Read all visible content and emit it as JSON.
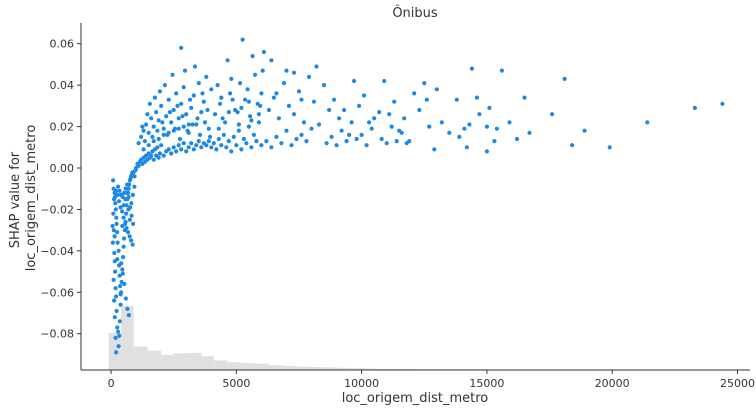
{
  "chart_data": {
    "type": "scatter",
    "title": "Ônibus",
    "xlabel": "loc_origem_dist_metro",
    "ylabel_lines": [
      "SHAP value for",
      "loc_origem_dist_metro"
    ],
    "xlim": [
      -1200,
      25500
    ],
    "ylim": [
      -0.0975,
      0.07
    ],
    "x_ticks": [
      0,
      5000,
      10000,
      15000,
      20000,
      25000
    ],
    "x_tick_labels": [
      "0",
      "5000",
      "10000",
      "15000",
      "20000",
      "25000"
    ],
    "y_ticks": [
      -0.08,
      -0.06,
      -0.04,
      -0.02,
      0.0,
      0.02,
      0.04,
      0.06
    ],
    "y_tick_labels": [
      "−0.08",
      "−0.06",
      "−0.04",
      "−0.02",
      "0.00",
      "0.02",
      "0.04",
      "0.06"
    ],
    "grid": false,
    "point_color": "#1e88e5",
    "histogram_color": "#e0e0e0",
    "histogram": {
      "bin_edges": [
        -100,
        400,
        900,
        1450,
        2000,
        2500,
        3050,
        3600,
        4100,
        4650,
        5200,
        5750,
        6300,
        6850,
        7350,
        7900,
        8450,
        9000,
        9500,
        10050,
        10600,
        11150,
        11700,
        12200,
        12750,
        13300,
        13850,
        14350,
        14900,
        15450,
        16000,
        16550,
        17050,
        17600,
        18150,
        18700,
        19200,
        19750,
        20300,
        20850,
        21400,
        21900,
        22450,
        23000,
        23550,
        24050,
        24600
      ],
      "relative_heights": [
        1.0,
        1.72,
        0.63,
        0.52,
        0.41,
        0.45,
        0.46,
        0.37,
        0.26,
        0.21,
        0.19,
        0.17,
        0.13,
        0.11,
        0.09,
        0.08,
        0.07,
        0.06,
        0.05,
        0.04,
        0.03,
        0.03,
        0.03,
        0.02,
        0.02,
        0.02,
        0.02,
        0.02,
        0.01,
        0.01,
        0.01,
        0.01,
        0.01,
        0.01,
        0.01,
        0.005,
        0.005,
        0.005,
        0.005,
        0.005,
        0.005,
        0.005,
        0.005,
        0.005,
        0.005,
        0.005
      ]
    },
    "points": [
      [
        80,
        -0.006
      ],
      [
        100,
        -0.01
      ],
      [
        120,
        -0.015
      ],
      [
        90,
        -0.022
      ],
      [
        60,
        -0.028
      ],
      [
        110,
        -0.03
      ],
      [
        140,
        -0.033
      ],
      [
        70,
        -0.036
      ],
      [
        130,
        -0.041
      ],
      [
        150,
        -0.045
      ],
      [
        160,
        -0.05
      ],
      [
        100,
        -0.054
      ],
      [
        180,
        -0.058
      ],
      [
        200,
        -0.062
      ],
      [
        120,
        -0.064
      ],
      [
        220,
        -0.069
      ],
      [
        150,
        -0.072
      ],
      [
        250,
        -0.077
      ],
      [
        180,
        -0.082
      ],
      [
        300,
        -0.086
      ],
      [
        200,
        -0.089
      ],
      [
        280,
        -0.079
      ],
      [
        330,
        -0.081
      ],
      [
        350,
        -0.074
      ],
      [
        380,
        -0.066
      ],
      [
        400,
        -0.06
      ],
      [
        420,
        -0.055
      ],
      [
        450,
        -0.049
      ],
      [
        480,
        -0.043
      ],
      [
        500,
        -0.038
      ],
      [
        520,
        -0.034
      ],
      [
        550,
        -0.03
      ],
      [
        580,
        -0.026
      ],
      [
        600,
        -0.022
      ],
      [
        620,
        -0.018
      ],
      [
        650,
        -0.015
      ],
      [
        680,
        -0.012
      ],
      [
        700,
        -0.01
      ],
      [
        720,
        -0.008
      ],
      [
        750,
        -0.006
      ],
      [
        780,
        -0.005
      ],
      [
        800,
        -0.004
      ],
      [
        830,
        -0.003
      ],
      [
        860,
        -0.002
      ],
      [
        900,
        -0.002
      ],
      [
        300,
        -0.04
      ],
      [
        320,
        -0.047
      ],
      [
        340,
        -0.052
      ],
      [
        360,
        -0.057
      ],
      [
        380,
        -0.061
      ],
      [
        260,
        -0.036
      ],
      [
        240,
        -0.031
      ],
      [
        220,
        -0.027
      ],
      [
        210,
        -0.024
      ],
      [
        190,
        -0.02
      ],
      [
        170,
        -0.017
      ],
      [
        160,
        -0.014
      ],
      [
        140,
        -0.012
      ],
      [
        200,
        -0.011
      ],
      [
        260,
        -0.013
      ],
      [
        320,
        -0.016
      ],
      [
        380,
        -0.019
      ],
      [
        440,
        -0.021
      ],
      [
        500,
        -0.024
      ],
      [
        560,
        -0.027
      ],
      [
        620,
        -0.029
      ],
      [
        680,
        -0.031
      ],
      [
        740,
        -0.033
      ],
      [
        800,
        -0.035
      ],
      [
        860,
        -0.037
      ],
      [
        250,
        -0.044
      ],
      [
        410,
        -0.046
      ],
      [
        470,
        -0.051
      ],
      [
        530,
        -0.056
      ],
      [
        590,
        -0.063
      ],
      [
        650,
        -0.068
      ],
      [
        710,
        -0.071
      ],
      [
        450,
        -0.028
      ],
      [
        510,
        -0.018
      ],
      [
        570,
        -0.015
      ],
      [
        630,
        -0.012
      ],
      [
        690,
        -0.02
      ],
      [
        750,
        -0.025
      ],
      [
        810,
        -0.017
      ],
      [
        870,
        -0.013
      ],
      [
        930,
        -0.009
      ],
      [
        280,
        -0.009
      ],
      [
        340,
        -0.011
      ],
      [
        400,
        -0.013
      ],
      [
        460,
        -0.014
      ],
      [
        520,
        -0.012
      ],
      [
        580,
        -0.01
      ],
      [
        640,
        -0.008
      ],
      [
        700,
        -0.014
      ],
      [
        760,
        -0.019
      ],
      [
        820,
        -0.023
      ],
      [
        880,
        -0.027
      ],
      [
        940,
        -0.004
      ],
      [
        980,
        -0.001
      ],
      [
        1000,
        0.0
      ],
      [
        1050,
        0.002
      ],
      [
        1100,
        0.001
      ],
      [
        1150,
        0.003
      ],
      [
        1200,
        0.004
      ],
      [
        1250,
        0.002
      ],
      [
        1300,
        0.005
      ],
      [
        1350,
        0.003
      ],
      [
        1400,
        0.006
      ],
      [
        1450,
        0.004
      ],
      [
        1500,
        0.007
      ],
      [
        1550,
        0.005
      ],
      [
        1600,
        0.006
      ],
      [
        1650,
        0.008
      ],
      [
        1700,
        0.004
      ],
      [
        1750,
        0.009
      ],
      [
        1800,
        0.006
      ],
      [
        1850,
        0.01
      ],
      [
        1900,
        0.005
      ],
      [
        1950,
        0.007
      ],
      [
        2000,
        0.011
      ],
      [
        2100,
        0.006
      ],
      [
        2200,
        0.008
      ],
      [
        2300,
        0.009
      ],
      [
        2400,
        0.007
      ],
      [
        2500,
        0.01
      ],
      [
        2600,
        0.008
      ],
      [
        2700,
        0.011
      ],
      [
        2800,
        0.009
      ],
      [
        2900,
        0.012
      ],
      [
        3000,
        0.008
      ],
      [
        3100,
        0.01
      ],
      [
        3200,
        0.012
      ],
      [
        3300,
        0.009
      ],
      [
        3400,
        0.011
      ],
      [
        3500,
        0.013
      ],
      [
        3600,
        0.01
      ],
      [
        3700,
        0.012
      ],
      [
        3800,
        0.011
      ],
      [
        3900,
        0.013
      ],
      [
        4000,
        0.01
      ],
      [
        1100,
        0.012
      ],
      [
        1200,
        0.015
      ],
      [
        1300,
        0.018
      ],
      [
        1400,
        0.021
      ],
      [
        1500,
        0.017
      ],
      [
        1600,
        0.024
      ],
      [
        1700,
        0.02
      ],
      [
        1800,
        0.027
      ],
      [
        1900,
        0.023
      ],
      [
        2000,
        0.03
      ],
      [
        2100,
        0.019
      ],
      [
        2200,
        0.025
      ],
      [
        2300,
        0.033
      ],
      [
        2400,
        0.022
      ],
      [
        2500,
        0.028
      ],
      [
        2600,
        0.036
      ],
      [
        2700,
        0.024
      ],
      [
        2800,
        0.031
      ],
      [
        2900,
        0.039
      ],
      [
        3000,
        0.026
      ],
      [
        3100,
        0.017
      ],
      [
        3200,
        0.029
      ],
      [
        3300,
        0.035
      ],
      [
        3400,
        0.021
      ],
      [
        3500,
        0.041
      ],
      [
        3600,
        0.027
      ],
      [
        3700,
        0.032
      ],
      [
        3800,
        0.044
      ],
      [
        3900,
        0.019
      ],
      [
        4000,
        0.038
      ],
      [
        1250,
        0.02
      ],
      [
        1350,
        0.013
      ],
      [
        1450,
        0.026
      ],
      [
        1550,
        0.031
      ],
      [
        1650,
        0.015
      ],
      [
        1750,
        0.034
      ],
      [
        1850,
        0.018
      ],
      [
        1950,
        0.037
      ],
      [
        2050,
        0.022
      ],
      [
        2150,
        0.04
      ],
      [
        2250,
        0.016
      ],
      [
        2350,
        0.027
      ],
      [
        2450,
        0.045
      ],
      [
        2550,
        0.019
      ],
      [
        2650,
        0.03
      ],
      [
        2750,
        0.014
      ],
      [
        2850,
        0.025
      ],
      [
        2950,
        0.047
      ],
      [
        3050,
        0.018
      ],
      [
        3150,
        0.033
      ],
      [
        3250,
        0.021
      ],
      [
        3350,
        0.049
      ],
      [
        3450,
        0.024
      ],
      [
        3550,
        0.016
      ],
      [
        3650,
        0.036
      ],
      [
        3750,
        0.022
      ],
      [
        3850,
        0.028
      ],
      [
        3950,
        0.015
      ],
      [
        2800,
        0.058
      ],
      [
        1300,
        0.009
      ],
      [
        1500,
        0.011
      ],
      [
        1700,
        0.013
      ],
      [
        1900,
        0.014
      ],
      [
        2100,
        0.016
      ],
      [
        2300,
        0.017
      ],
      [
        2500,
        0.018
      ],
      [
        2700,
        0.019
      ],
      [
        2900,
        0.02
      ],
      [
        3100,
        0.021
      ],
      [
        4100,
        0.012
      ],
      [
        4200,
        0.009
      ],
      [
        4300,
        0.014
      ],
      [
        4400,
        0.011
      ],
      [
        4500,
        0.016
      ],
      [
        4600,
        0.01
      ],
      [
        4700,
        0.013
      ],
      [
        4800,
        0.008
      ],
      [
        4900,
        0.015
      ],
      [
        5000,
        0.011
      ],
      [
        5100,
        0.018
      ],
      [
        5200,
        0.009
      ],
      [
        5300,
        0.014
      ],
      [
        5400,
        0.012
      ],
      [
        5500,
        0.02
      ],
      [
        5600,
        0.01
      ],
      [
        5700,
        0.016
      ],
      [
        5800,
        0.013
      ],
      [
        5900,
        0.022
      ],
      [
        6000,
        0.011
      ],
      [
        4150,
        0.026
      ],
      [
        4350,
        0.031
      ],
      [
        4550,
        0.022
      ],
      [
        4750,
        0.036
      ],
      [
        4950,
        0.028
      ],
      [
        5150,
        0.041
      ],
      [
        5350,
        0.033
      ],
      [
        5550,
        0.025
      ],
      [
        5750,
        0.045
      ],
      [
        5950,
        0.03
      ],
      [
        4250,
        0.04
      ],
      [
        4450,
        0.024
      ],
      [
        4650,
        0.052
      ],
      [
        4850,
        0.033
      ],
      [
        5050,
        0.027
      ],
      [
        5250,
        0.062
      ],
      [
        5450,
        0.038
      ],
      [
        5650,
        0.054
      ],
      [
        5850,
        0.031
      ],
      [
        6050,
        0.047
      ],
      [
        4300,
        0.019
      ],
      [
        4700,
        0.027
      ],
      [
        5100,
        0.021
      ],
      [
        5500,
        0.032
      ],
      [
        5900,
        0.026
      ],
      [
        4400,
        0.034
      ],
      [
        4800,
        0.043
      ],
      [
        5200,
        0.029
      ],
      [
        5600,
        0.023
      ],
      [
        6000,
        0.036
      ],
      [
        6200,
        0.013
      ],
      [
        6400,
        0.01
      ],
      [
        6600,
        0.015
      ],
      [
        6800,
        0.012
      ],
      [
        7000,
        0.018
      ],
      [
        7200,
        0.011
      ],
      [
        7400,
        0.014
      ],
      [
        7600,
        0.016
      ],
      [
        7800,
        0.013
      ],
      [
        8000,
        0.019
      ],
      [
        6300,
        0.028
      ],
      [
        6500,
        0.034
      ],
      [
        6700,
        0.024
      ],
      [
        6900,
        0.041
      ],
      [
        7100,
        0.03
      ],
      [
        7300,
        0.026
      ],
      [
        7500,
        0.037
      ],
      [
        7700,
        0.022
      ],
      [
        7900,
        0.044
      ],
      [
        8100,
        0.032
      ],
      [
        6400,
        0.052
      ],
      [
        7000,
        0.047
      ],
      [
        7600,
        0.033
      ],
      [
        8200,
        0.049
      ],
      [
        8500,
        0.04
      ],
      [
        6100,
        0.056
      ],
      [
        6600,
        0.036
      ],
      [
        7300,
        0.046
      ],
      [
        8300,
        0.021
      ],
      [
        8700,
        0.028
      ],
      [
        8600,
        0.012
      ],
      [
        8800,
        0.015
      ],
      [
        9000,
        0.011
      ],
      [
        9200,
        0.018
      ],
      [
        9400,
        0.013
      ],
      [
        9600,
        0.022
      ],
      [
        9800,
        0.014
      ],
      [
        10000,
        0.016
      ],
      [
        10200,
        0.011
      ],
      [
        10400,
        0.019
      ],
      [
        8900,
        0.033
      ],
      [
        9300,
        0.028
      ],
      [
        9700,
        0.042
      ],
      [
        10100,
        0.035
      ],
      [
        10500,
        0.024
      ],
      [
        9100,
        0.024
      ],
      [
        9500,
        0.016
      ],
      [
        9900,
        0.03
      ],
      [
        10300,
        0.022
      ],
      [
        10700,
        0.027
      ],
      [
        10800,
        0.014
      ],
      [
        11000,
        0.012
      ],
      [
        11200,
        0.02
      ],
      [
        11400,
        0.013
      ],
      [
        11600,
        0.017
      ],
      [
        10900,
        0.042
      ],
      [
        11300,
        0.032
      ],
      [
        11700,
        0.024
      ],
      [
        12100,
        0.036
      ],
      [
        12500,
        0.041
      ],
      [
        11100,
        0.026
      ],
      [
        11500,
        0.018
      ],
      [
        11900,
        0.013
      ],
      [
        12300,
        0.028
      ],
      [
        12700,
        0.02
      ],
      [
        12900,
        0.009
      ],
      [
        13200,
        0.022
      ],
      [
        13500,
        0.017
      ],
      [
        13800,
        0.033
      ],
      [
        14100,
        0.019
      ],
      [
        14400,
        0.048
      ],
      [
        14700,
        0.026
      ],
      [
        15000,
        0.02
      ],
      [
        15300,
        0.013
      ],
      [
        15600,
        0.047
      ],
      [
        14200,
        0.01
      ],
      [
        14600,
        0.034
      ],
      [
        15100,
        0.029
      ],
      [
        15400,
        0.019
      ],
      [
        15900,
        0.022
      ],
      [
        13900,
        0.015
      ],
      [
        14300,
        0.021
      ],
      [
        15000,
        0.008
      ],
      [
        16200,
        0.014
      ],
      [
        16500,
        0.034
      ],
      [
        16700,
        0.017
      ],
      [
        18100,
        0.043
      ],
      [
        18400,
        0.011
      ],
      [
        18900,
        0.018
      ],
      [
        19900,
        0.01
      ],
      [
        21400,
        0.022
      ],
      [
        23300,
        0.029
      ],
      [
        24400,
        0.031
      ],
      [
        17600,
        0.026
      ],
      [
        12600,
        0.033
      ],
      [
        13000,
        0.038
      ],
      [
        11800,
        0.012
      ]
    ]
  }
}
